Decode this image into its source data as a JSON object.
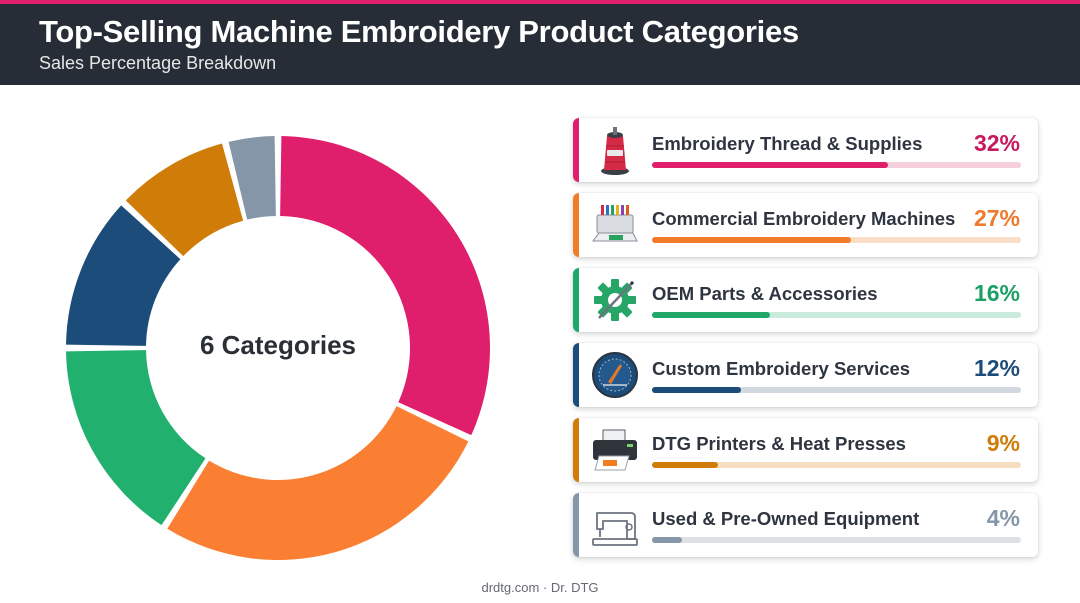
{
  "header": {
    "title": "Top-Selling Machine Embroidery Product Categories",
    "subtitle": "Sales Percentage Breakdown"
  },
  "center_label": "6 Categories",
  "footer": "drdtg.com · Dr. DTG",
  "chart_data": {
    "type": "pie",
    "title": "Top-Selling Machine Embroidery Product Categories",
    "subtitle": "Sales Percentage Breakdown",
    "categories": [
      "Embroidery Thread & Supplies",
      "Commercial Embroidery Machines",
      "OEM Parts & Accessories",
      "Custom Embroidery Services",
      "DTG Printers & Heat Presses",
      "Used & Pre-Owned Equipment"
    ],
    "values": [
      32,
      27,
      16,
      12,
      9,
      4
    ],
    "colors": [
      "#e01f6c",
      "#fb7f32",
      "#22b06f",
      "#1c4c79",
      "#cf7d08",
      "#8596a8"
    ],
    "donut": true,
    "legend": "right"
  },
  "items": [
    {
      "label": "Embroidery Thread & Supplies",
      "pct_text": "32%",
      "value": 32,
      "color": "#e01f6c",
      "pct_color": "#c8185e",
      "track": "#f6cfdd",
      "icon": "thread-spool-icon"
    },
    {
      "label": "Commercial Embroidery Machines",
      "pct_text": "27%",
      "value": 27,
      "color": "#f47b2a",
      "pct_color": "#ee7a2c",
      "track": "#fbdcc6",
      "icon": "embroidery-machine-icon"
    },
    {
      "label": "OEM Parts & Accessories",
      "pct_text": "16%",
      "value": 16,
      "color": "#1fa86a",
      "pct_color": "#1aa266",
      "track": "#c9ebdb",
      "icon": "gear-needle-icon"
    },
    {
      "label": "Custom Embroidery Services",
      "pct_text": "12%",
      "value": 12,
      "color": "#1c4c79",
      "pct_color": "#1c4c79",
      "track": "#d1d8e0",
      "icon": "embroidery-badge-icon"
    },
    {
      "label": "DTG Printers & Heat Presses",
      "pct_text": "9%",
      "value": 9,
      "color": "#cf7d08",
      "pct_color": "#cf7d08",
      "track": "#f6dfc0",
      "icon": "printer-icon"
    },
    {
      "label": "Used & Pre-Owned Equipment",
      "pct_text": "4%",
      "value": 4,
      "color": "#8596a8",
      "pct_color": "#8596a8",
      "track": "#dde1e6",
      "icon": "sewing-machine-icon"
    }
  ]
}
